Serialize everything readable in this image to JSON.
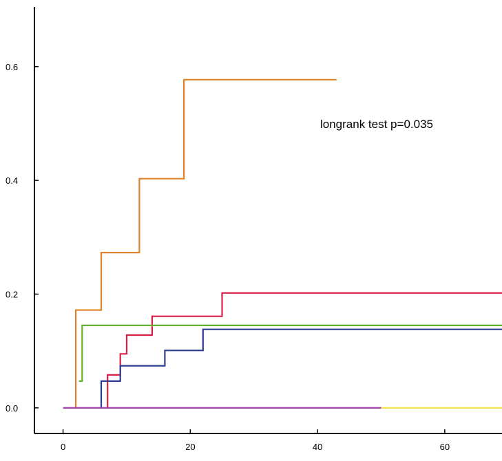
{
  "chart_data": {
    "type": "line",
    "subtype": "step",
    "title": "",
    "xlabel": "",
    "ylabel": "",
    "xlim": [
      -4.5,
      69
    ],
    "ylim": [
      -0.045,
      0.705
    ],
    "x_ticks": [
      0,
      20,
      40,
      60
    ],
    "y_ticks": [
      0.0,
      0.2,
      0.4,
      0.6
    ],
    "x_tick_labels": [
      "0",
      "20",
      "40",
      "60"
    ],
    "y_tick_labels": [
      "0.0",
      "0.2",
      "0.4",
      "0.6"
    ],
    "grid": false,
    "legend": "none",
    "annotation": "longrank test p=0.035",
    "series": [
      {
        "color": "#e0832a",
        "points": [
          [
            2,
            0.0
          ],
          [
            2,
            0.172
          ],
          [
            6,
            0.172
          ],
          [
            6,
            0.273
          ],
          [
            12,
            0.273
          ],
          [
            12,
            0.403
          ],
          [
            19,
            0.403
          ],
          [
            19,
            0.577
          ],
          [
            43,
            0.577
          ]
        ]
      },
      {
        "color": "#d81f45",
        "points": [
          [
            7,
            0.0
          ],
          [
            7,
            0.058
          ],
          [
            9,
            0.058
          ],
          [
            9,
            0.095
          ],
          [
            10,
            0.095
          ],
          [
            10,
            0.128
          ],
          [
            14,
            0.128
          ],
          [
            14,
            0.161
          ],
          [
            25,
            0.161
          ],
          [
            25,
            0.202
          ],
          [
            70,
            0.202
          ]
        ]
      },
      {
        "color": "#5db52b",
        "points": [
          [
            2.5,
            0.047
          ],
          [
            3,
            0.047
          ],
          [
            3,
            0.145
          ],
          [
            72,
            0.145
          ]
        ]
      },
      {
        "color": "#2c3e91",
        "points": [
          [
            6,
            0.0
          ],
          [
            6,
            0.047
          ],
          [
            9,
            0.047
          ],
          [
            9,
            0.074
          ],
          [
            16,
            0.074
          ],
          [
            16,
            0.101
          ],
          [
            22,
            0.101
          ],
          [
            22,
            0.138
          ],
          [
            70,
            0.138
          ]
        ]
      },
      {
        "color": "#f2e34a",
        "points": [
          [
            50,
            0.0
          ],
          [
            73,
            0.0
          ]
        ]
      },
      {
        "color": "#9b3ea6",
        "points": [
          [
            0,
            0.0
          ],
          [
            50,
            0.0
          ]
        ]
      }
    ]
  }
}
